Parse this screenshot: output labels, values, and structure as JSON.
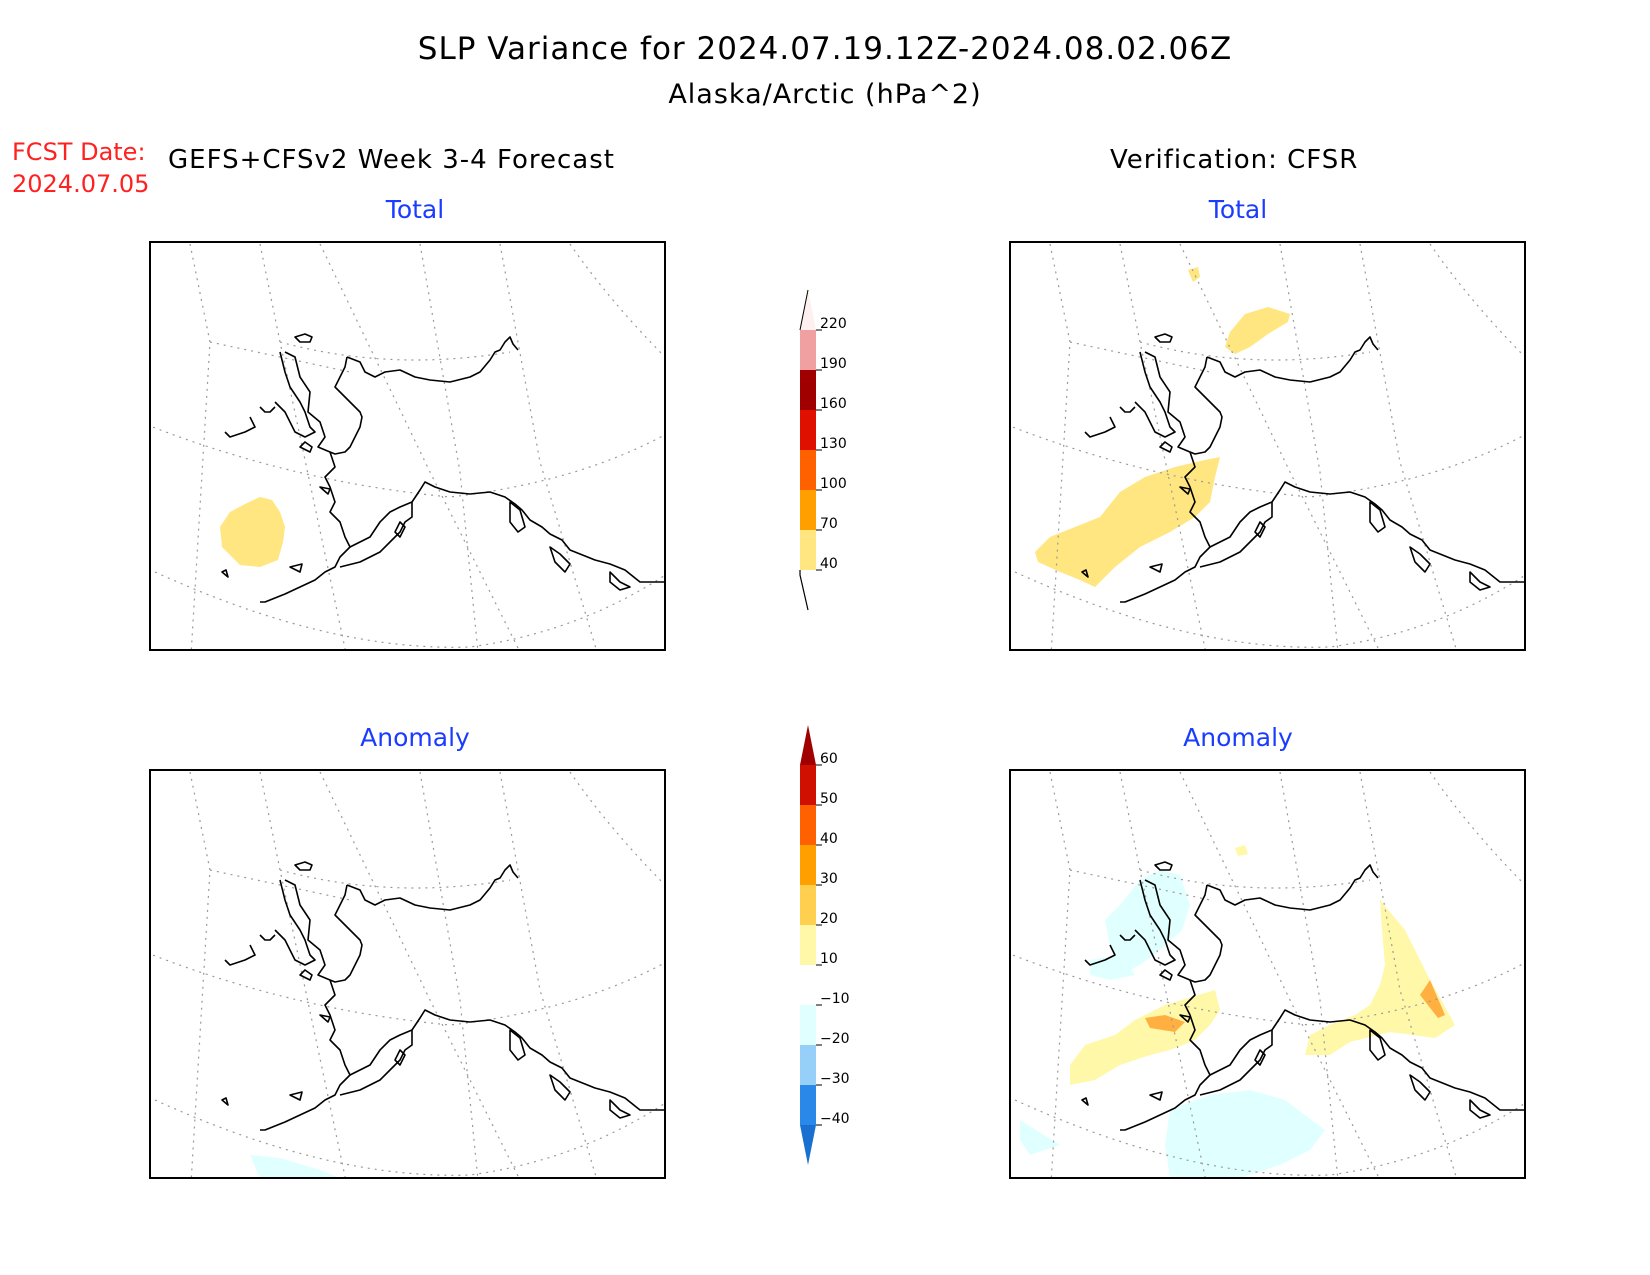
{
  "title": {
    "line1": "SLP Variance for 2024.07.19.12Z-2024.08.02.06Z",
    "line2": "Alaska/Arctic (hPa^2)"
  },
  "fcst_date": {
    "label": "FCST Date:",
    "value": "2024.07.05"
  },
  "headers": {
    "left": "GEFS+CFSv2 Week 3-4 Forecast",
    "right": "Verification: CFSR"
  },
  "panels": {
    "total_forecast": {
      "title": "Total"
    },
    "total_verification": {
      "title": "Total"
    },
    "anomaly_forecast": {
      "title": "Anomaly"
    },
    "anomaly_verification": {
      "title": "Anomaly"
    }
  },
  "colorbar_total": {
    "labels": [
      "40",
      "70",
      "100",
      "130",
      "160",
      "190",
      "220"
    ],
    "colors": [
      "#ffe680",
      "#ffa000",
      "#ff6000",
      "#e01000",
      "#a00000",
      "#f0a0a0",
      "#fff0f0"
    ]
  },
  "colorbar_anomaly": {
    "labels": [
      "-40",
      "-30",
      "-20",
      "-10",
      "10",
      "20",
      "30",
      "40",
      "50",
      "60"
    ],
    "colors": [
      "#1a70d0",
      "#2a88e8",
      "#96d0f8",
      "#e0ffff",
      "#ffffff",
      "#fff8a8",
      "#ffd050",
      "#ffa000",
      "#ff6000",
      "#d01000",
      "#a00000"
    ]
  },
  "colors": {
    "title_text": "#000000",
    "panel_title": "#1a3cff",
    "fcst_date": "#ff2020",
    "yellow_fill": "#ffe680",
    "anomaly_light_yellow": "#fff8a8",
    "anomaly_orange": "#ffb040",
    "anomaly_light_cyan": "#e0ffff"
  }
}
